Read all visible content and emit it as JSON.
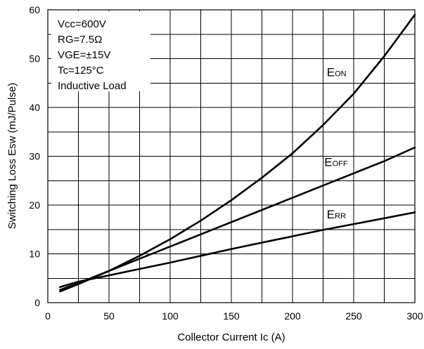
{
  "chart_data": {
    "type": "line",
    "xlabel": "Collector Current Ic  (A)",
    "ylabel": "Switching Loss Esw (mJ/Pulse)",
    "xlim": [
      0,
      300
    ],
    "ylim": [
      0,
      60
    ],
    "xticks": [
      0,
      50,
      100,
      150,
      200,
      250,
      300
    ],
    "yticks": [
      0,
      10,
      20,
      30,
      40,
      50,
      60
    ],
    "x_minor_step": 25,
    "y_minor_step": 5,
    "grid": true,
    "conditions": [
      "Vcc=600V",
      "RG=7.5Ω",
      "VGE=±15V",
      "Tc=125°C",
      "Inductive Load"
    ],
    "series": [
      {
        "name": "EON",
        "label_main": "E",
        "label_sub": "ON",
        "x": [
          10,
          25,
          50,
          75,
          100,
          125,
          150,
          175,
          200,
          225,
          250,
          275,
          300
        ],
        "y": [
          2.3,
          3.8,
          6.5,
          9.6,
          13.0,
          16.8,
          21.0,
          25.6,
          30.6,
          36.4,
          42.8,
          50.5,
          59.0
        ]
      },
      {
        "name": "EOFF",
        "label_main": "E",
        "label_sub": "OFF",
        "x": [
          10,
          25,
          50,
          75,
          100,
          125,
          150,
          175,
          200,
          225,
          250,
          275,
          300
        ],
        "y": [
          2.6,
          4.0,
          6.5,
          9.0,
          11.5,
          14.0,
          16.5,
          19.0,
          21.5,
          24.0,
          26.5,
          29.0,
          31.8
        ]
      },
      {
        "name": "ERR",
        "label_main": "E",
        "label_sub": "RR",
        "x": [
          10,
          25,
          50,
          75,
          100,
          125,
          150,
          175,
          200,
          225,
          250,
          275,
          300
        ],
        "y": [
          3.2,
          4.3,
          5.6,
          6.9,
          8.2,
          9.6,
          11.0,
          12.3,
          13.6,
          14.9,
          16.1,
          17.3,
          18.5
        ]
      }
    ]
  }
}
